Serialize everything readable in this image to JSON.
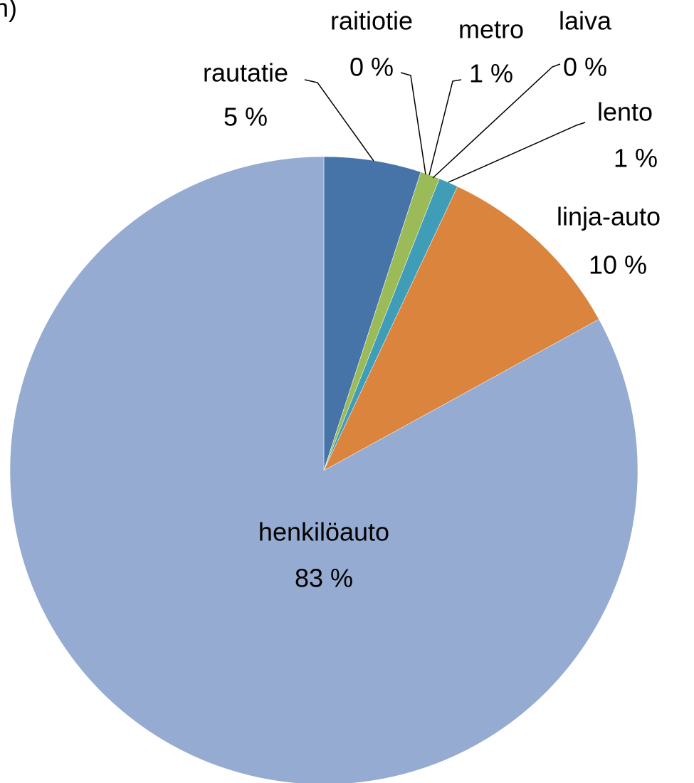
{
  "chart_data": {
    "type": "pie",
    "title": "n)",
    "categories": [
      "rautatie",
      "raitiotie",
      "metro",
      "laiva",
      "lento",
      "linja-auto",
      "henkilöauto"
    ],
    "values": [
      5,
      0,
      1,
      0,
      1,
      10,
      83
    ],
    "value_labels": [
      "5 %",
      "0 %",
      "1 %",
      "0 %",
      "1 %",
      "10 %",
      "83 %"
    ],
    "colors": [
      "#4674a9",
      "#c0504d",
      "#9bbb59",
      "#8064a2",
      "#3f9db8",
      "#db843d",
      "#95abd2"
    ]
  }
}
